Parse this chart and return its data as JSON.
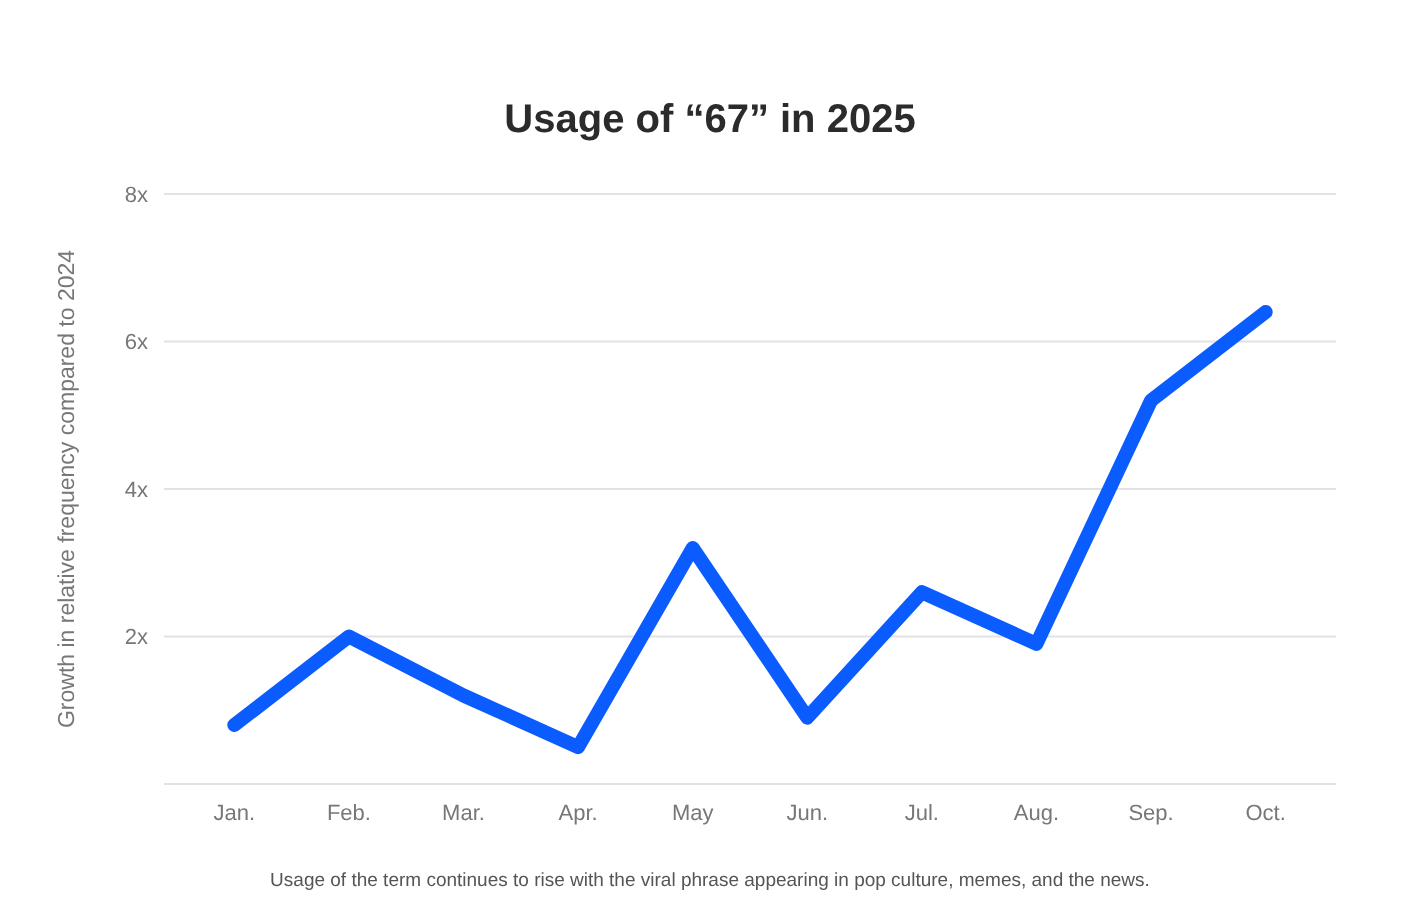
{
  "chart_data": {
    "type": "line",
    "title": "Usage of “67” in 2025",
    "ylabel": "Growth in relative frequency compared to 2024",
    "annotations": [
      "Usage of the term continues to rise with the viral phrase appearing in pop culture, memes, and the news."
    ],
    "categories": [
      "Jan.",
      "Feb.",
      "Mar.",
      "Apr.",
      "May",
      "Jun.",
      "Jul.",
      "Aug.",
      "Sep.",
      "Oct."
    ],
    "series": [
      {
        "color": "#0a5cff",
        "values": [
          0.8,
          2.0,
          1.2,
          0.5,
          3.2,
          0.9,
          2.6,
          1.9,
          5.2,
          6.4
        ]
      }
    ],
    "ylim": [
      0,
      8
    ],
    "yticks": [
      {
        "value": 0,
        "label": null
      },
      {
        "value": 2,
        "label": "2x"
      },
      {
        "value": 4,
        "label": "4x"
      },
      {
        "value": 6,
        "label": "6x"
      },
      {
        "value": 8,
        "label": "8x"
      }
    ],
    "grid": "y",
    "marker": "none",
    "line_style": "solid"
  }
}
